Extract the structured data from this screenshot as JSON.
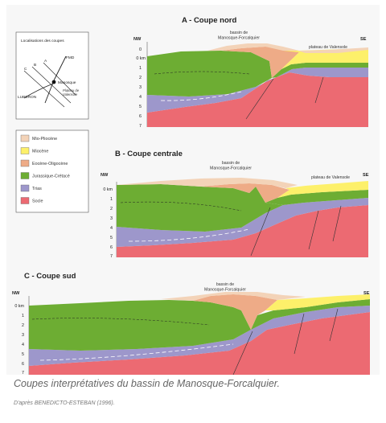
{
  "sections": [
    {
      "title": "A - Coupe nord",
      "basin": [
        "bassin de",
        "Manosque-Forcalquier"
      ],
      "plateau": "plateau de Valensole",
      "left_dir": "NW",
      "right_dir": "SE",
      "ticks": [
        "0",
        "0 km",
        "1",
        "2",
        "3",
        "4",
        "5",
        "6",
        "7"
      ]
    },
    {
      "title": "B - Coupe centrale",
      "basin": [
        "bassin de",
        "Manosque-Forcalquier"
      ],
      "plateau": "plateau de Valensole",
      "left_dir": "NW",
      "right_dir": "SE",
      "ticks": [
        "0 km",
        "1",
        "2",
        "3",
        "4",
        "5",
        "6",
        "7"
      ]
    },
    {
      "title": "C - Coupe sud",
      "basin": [
        "bassin de",
        "Manosque-Forcalquier"
      ],
      "left_dir": "NW",
      "right_dir": "SE",
      "ticks": [
        "0 km",
        "1",
        "2",
        "3",
        "4",
        "5",
        "6",
        "7"
      ]
    }
  ],
  "location_map": {
    "title": "Localisations des coupes",
    "labels": {
      "a": "A",
      "b": "B",
      "c": "C",
      "fmd": "FMD",
      "manosque": "Manosque",
      "luberon": "LUBERON",
      "plateau1": "Plateau de",
      "plateau2": "Valensole"
    }
  },
  "legend": [
    {
      "label": "Mio-Pliocène",
      "color": "#f3d3b8"
    },
    {
      "label": "Miocène",
      "color": "#fdf06a"
    },
    {
      "label": "Eocène-Oligocène",
      "color": "#eeab87"
    },
    {
      "label": "Jurassique-Crétacé",
      "color": "#6dad33"
    },
    {
      "label": "Trias",
      "color": "#9d97cb"
    },
    {
      "label": "Socle",
      "color": "#ec6a72"
    }
  ],
  "caption": "Coupes interprétatives du bassin de Manosque-Forcalquier.",
  "credit": "D'après BENEDICTO-ESTEBAN (1996)."
}
